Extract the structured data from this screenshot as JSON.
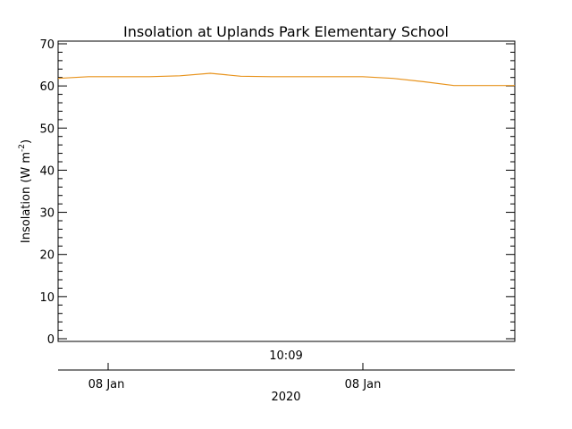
{
  "chart_data": {
    "type": "line",
    "title": "Insolation at Uplands Park Elementary School",
    "ylabel": "Insolation (W m",
    "ylabel_sup": "-2",
    "ylabel_close": ")",
    "ylim": [
      0,
      70
    ],
    "yticks": [
      0,
      10,
      20,
      30,
      40,
      50,
      60,
      70
    ],
    "grid": false,
    "legend": "none",
    "time_label": "10:09",
    "date_ticks": [
      "08 Jan",
      "08 Jan"
    ],
    "xlabel": "2020",
    "line_color": "#e8931c",
    "series": [
      {
        "values": [
          61.8,
          62.2,
          62.2,
          62.2,
          62.4,
          63.0,
          62.3,
          62.2,
          62.2,
          62.2,
          62.2,
          61.8,
          61.0,
          60.1,
          60.1,
          60.1
        ]
      }
    ]
  }
}
